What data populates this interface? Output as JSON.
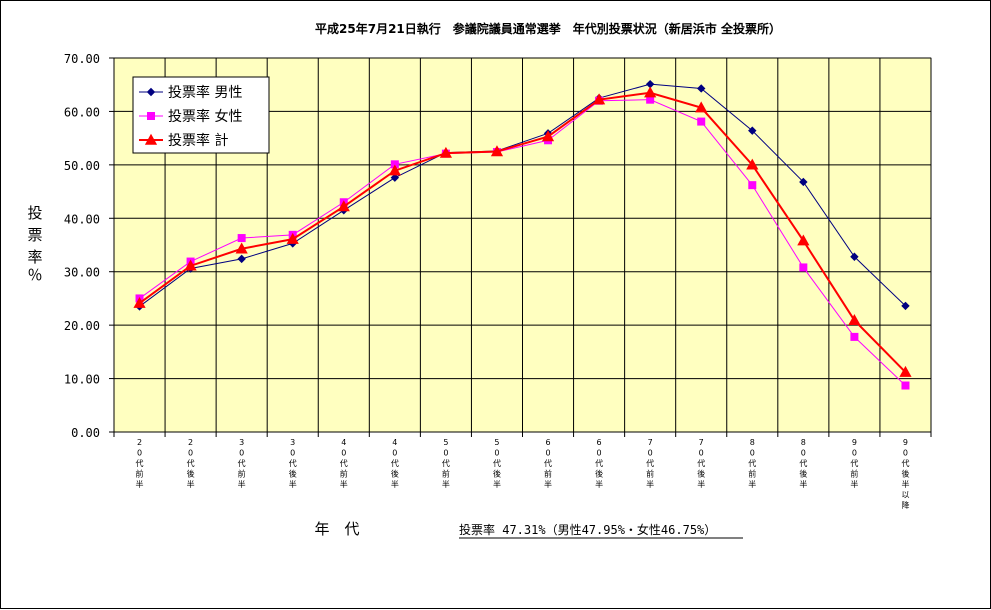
{
  "chart_data": {
    "type": "line",
    "title": "平成25年7月21日執行　参議院議員通常選挙　年代別投票状況（新居浜市 全投票所）",
    "ylabel": "投票率％",
    "xlabel": "年　代",
    "ylim": [
      0,
      70
    ],
    "yticks": [
      "0.00",
      "10.00",
      "20.00",
      "30.00",
      "40.00",
      "50.00",
      "60.00",
      "70.00"
    ],
    "categories": [
      "20代前半",
      "20代後半",
      "30代前半",
      "30代後半",
      "40代前半",
      "40代後半",
      "50代前半",
      "50代後半",
      "60代前半",
      "60代後半",
      "70代前半",
      "70代後半",
      "80代前半",
      "80代後半",
      "90代前半",
      "90代後半以降"
    ],
    "series": [
      {
        "name": "投票率 男性",
        "color": "#000080",
        "marker": "diamond",
        "values": [
          23.5,
          30.6,
          32.4,
          35.3,
          41.5,
          47.6,
          52.3,
          52.6,
          55.9,
          62.5,
          65.1,
          64.3,
          56.4,
          46.8,
          32.8,
          23.6
        ]
      },
      {
        "name": "投票率 女性",
        "color": "#ff00ff",
        "marker": "square",
        "values": [
          25.0,
          31.9,
          36.3,
          36.9,
          43.0,
          50.1,
          52.1,
          52.4,
          54.6,
          62.0,
          62.2,
          58.1,
          46.2,
          30.8,
          17.8,
          8.7
        ]
      },
      {
        "name": "投票率 計",
        "color": "#ff0000",
        "marker": "triangle",
        "values": [
          24.1,
          31.1,
          34.3,
          36.1,
          42.2,
          48.9,
          52.2,
          52.5,
          55.3,
          62.2,
          63.5,
          60.7,
          50.0,
          35.8,
          20.9,
          11.2
        ]
      }
    ],
    "grid": true,
    "legend_position": "top-left",
    "plot_background": "#ffffc0",
    "summary": "投票率 47.31%（男性47.95%・女性46.75%）"
  }
}
